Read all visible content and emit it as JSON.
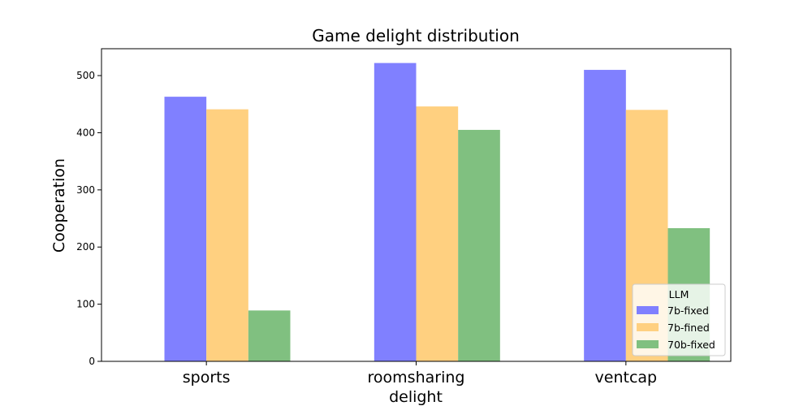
{
  "chart_data": {
    "type": "bar",
    "title": "Game delight distribution",
    "xlabel": "delight",
    "ylabel": "Cooperation",
    "categories": [
      "sports",
      "roomsharing",
      "ventcap"
    ],
    "series": [
      {
        "name": "7b-fixed",
        "color": "#8080ff",
        "values": [
          463,
          522,
          510
        ]
      },
      {
        "name": "7b-fined",
        "color": "#ffd080",
        "values": [
          441,
          446,
          440
        ]
      },
      {
        "name": "70b-fixed",
        "color": "#80c080",
        "values": [
          89,
          405,
          233
        ]
      }
    ],
    "ylim": [
      0,
      547
    ],
    "yticks": [
      0,
      100,
      200,
      300,
      400,
      500
    ],
    "grid": false,
    "legend": {
      "title": "LLM",
      "placement": "lower-right"
    }
  }
}
